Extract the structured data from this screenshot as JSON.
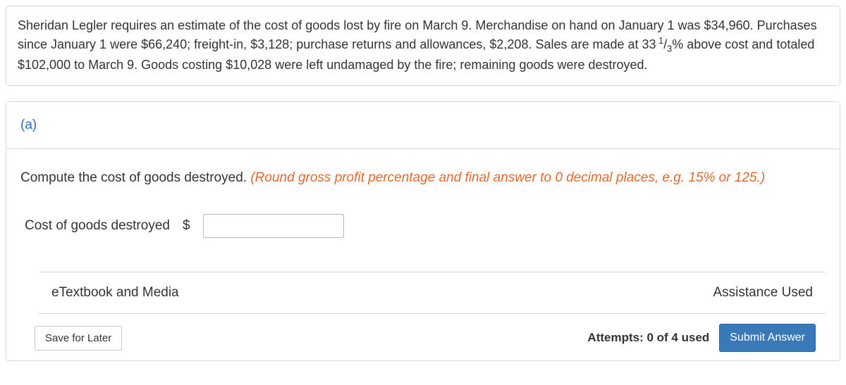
{
  "problem": {
    "text_parts": {
      "p1": "Sheridan Legler requires an estimate of the cost of goods lost by fire on March 9. Merchandise on hand on January 1 was $34,960. Purchases since January 1 were $66,240; freight-in, $3,128; purchase returns and allowances, $2,208. Sales are made at 33 ",
      "frac_num": "1",
      "frac_den": "3",
      "p2": "% above cost and totaled $102,000 to March 9. Goods costing $10,028 were left undamaged by the fire; remaining goods were destroyed."
    }
  },
  "part": {
    "label": "(a)",
    "instruction_prefix": "Compute the cost of goods destroyed. ",
    "instruction_hint": "(Round gross profit percentage and final answer to 0 decimal places, e.g. 15% or 125.)",
    "answer_label": "Cost of goods destroyed",
    "currency_symbol": "$",
    "answer_value": ""
  },
  "resources": {
    "etextbook_label": "eTextbook and Media",
    "assistance_label": "Assistance Used"
  },
  "footer": {
    "save_label": "Save for Later",
    "attempts_text": "Attempts: 0 of 4 used",
    "submit_label": "Submit Answer"
  },
  "colors": {
    "border": "#d8d8d8",
    "part_header_text": "#2b6fbb",
    "hint_text": "#e06a2d",
    "submit_bg": "#3a79b7",
    "submit_border": "#2e6398",
    "text": "#333333",
    "background": "#ffffff"
  }
}
